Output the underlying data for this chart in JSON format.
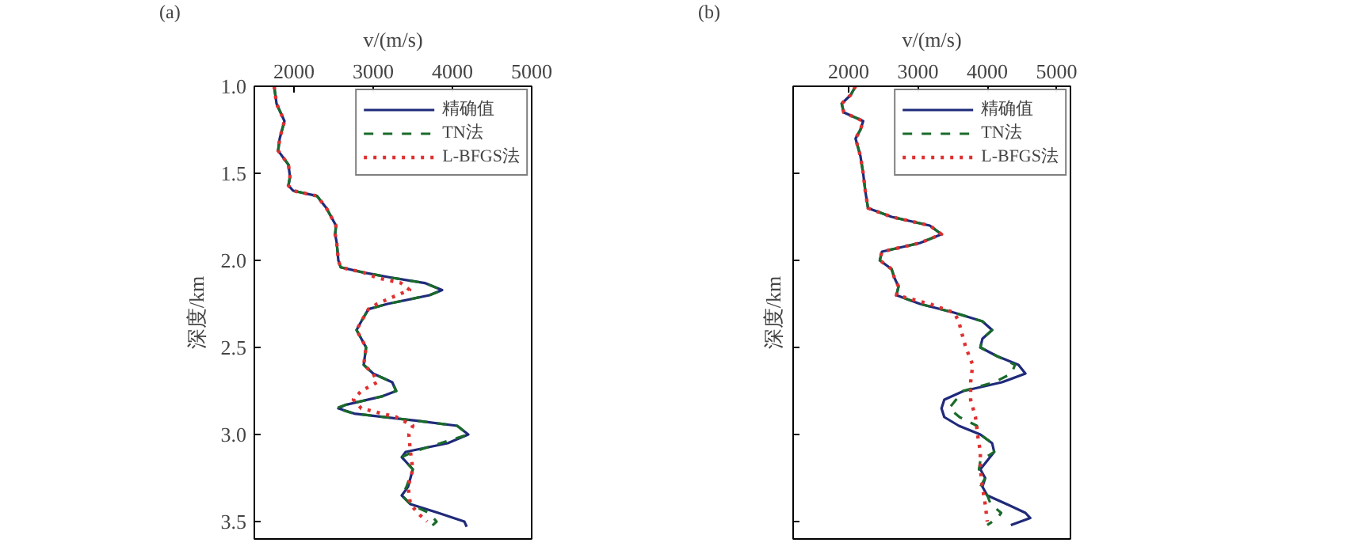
{
  "chart_data": [
    {
      "type": "line",
      "xlabel": "v/(m/s)",
      "ylabel": "深度/km",
      "annotations": [
        "(a)"
      ],
      "xlim": [
        1500,
        5000
      ],
      "xticks": [
        2000,
        3000,
        4000,
        5000
      ],
      "ylim": [
        3.6,
        1.0
      ],
      "yticks": [
        {
          "value": 1,
          "label": "1.0"
        },
        1.5,
        {
          "value": 2,
          "label": "2.0"
        },
        2.5,
        {
          "value": 3,
          "label": "3.0"
        },
        3.5
      ],
      "grid": false,
      "legend": "top right",
      "marker": "none",
      "series": [
        {
          "name": "精确值",
          "color": "#1f2a7a",
          "line_style": "solid",
          "x": [
            1750,
            1780,
            1880,
            1820,
            1800,
            1930,
            1950,
            1930,
            1990,
            2290,
            2410,
            2470,
            2530,
            2520,
            2540,
            2550,
            2560,
            2590,
            2880,
            3240,
            3650,
            3870,
            3710,
            3180,
            2940,
            2850,
            2790,
            2850,
            2910,
            2880,
            3000,
            3240,
            3290,
            3120,
            2650,
            2560,
            2760,
            3530,
            4060,
            4200,
            3940,
            3410,
            3360,
            3500,
            3440,
            3360,
            3470,
            3820,
            4150,
            4180
          ],
          "values": [
            1.0,
            1.1,
            1.2,
            1.3,
            1.37,
            1.45,
            1.52,
            1.57,
            1.6,
            1.63,
            1.7,
            1.75,
            1.8,
            1.85,
            1.9,
            1.95,
            2.0,
            2.04,
            2.07,
            2.1,
            2.13,
            2.17,
            2.2,
            2.25,
            2.28,
            2.35,
            2.4,
            2.45,
            2.5,
            2.6,
            2.65,
            2.7,
            2.75,
            2.78,
            2.83,
            2.85,
            2.88,
            2.92,
            2.95,
            3.0,
            3.05,
            3.1,
            3.13,
            3.2,
            3.3,
            3.35,
            3.4,
            3.45,
            3.5,
            3.53
          ]
        },
        {
          "name": "TN法",
          "color": "#1a6b2a",
          "line_style": "dashed",
          "x": [
            1750,
            1780,
            1880,
            1820,
            1800,
            1930,
            1950,
            1930,
            1990,
            2290,
            2410,
            2470,
            2530,
            2520,
            2540,
            2550,
            2560,
            2590,
            2880,
            3240,
            3650,
            3870,
            3710,
            3180,
            2940,
            2850,
            2790,
            2850,
            2910,
            2880,
            3000,
            3240,
            3290,
            3120,
            2650,
            2530,
            2760,
            3530,
            4060,
            4200,
            3850,
            3500,
            3360,
            3500,
            3420,
            3360,
            3470,
            3700,
            3800,
            3730
          ],
          "values": [
            1.0,
            1.1,
            1.2,
            1.3,
            1.37,
            1.45,
            1.52,
            1.57,
            1.6,
            1.63,
            1.7,
            1.75,
            1.8,
            1.85,
            1.9,
            1.95,
            2.0,
            2.04,
            2.07,
            2.1,
            2.13,
            2.17,
            2.2,
            2.25,
            2.28,
            2.35,
            2.4,
            2.45,
            2.5,
            2.6,
            2.65,
            2.7,
            2.75,
            2.78,
            2.83,
            2.85,
            2.88,
            2.92,
            2.95,
            3.0,
            3.05,
            3.1,
            3.13,
            3.2,
            3.3,
            3.35,
            3.4,
            3.45,
            3.5,
            3.53
          ]
        },
        {
          "name": "L-BFGS法",
          "color": "#e03030",
          "line_style": "dotted",
          "x": [
            1750,
            1780,
            1880,
            1820,
            1800,
            1930,
            1950,
            1930,
            1990,
            2290,
            2410,
            2470,
            2530,
            2520,
            2540,
            2550,
            2560,
            2590,
            2880,
            3050,
            3350,
            3460,
            3300,
            3050,
            2940,
            2850,
            2790,
            2850,
            2910,
            2880,
            3000,
            3050,
            2850,
            2750,
            2850,
            3290,
            3500,
            3450,
            3470,
            3500,
            3440,
            3470,
            3560,
            3680
          ],
          "values": [
            1.0,
            1.1,
            1.2,
            1.3,
            1.37,
            1.45,
            1.52,
            1.57,
            1.6,
            1.63,
            1.7,
            1.75,
            1.8,
            1.85,
            1.9,
            1.95,
            2.0,
            2.04,
            2.07,
            2.1,
            2.13,
            2.17,
            2.2,
            2.25,
            2.28,
            2.35,
            2.4,
            2.45,
            2.5,
            2.6,
            2.65,
            2.7,
            2.75,
            2.8,
            2.85,
            2.9,
            2.95,
            3.0,
            3.1,
            3.2,
            3.3,
            3.4,
            3.45,
            3.5
          ]
        }
      ]
    },
    {
      "type": "line",
      "xlabel": "v/(m/s)",
      "ylabel": "深度/km",
      "annotations": [
        "(b)"
      ],
      "xlim": [
        1200,
        5200
      ],
      "xticks": [
        2000,
        3000,
        4000,
        5000
      ],
      "ylim": [
        3.6,
        1.0
      ],
      "yticks": [
        1,
        1.5,
        2,
        2.5,
        3,
        3.5
      ],
      "tick_labels": "x",
      "grid": false,
      "legend": "top right",
      "marker": "none",
      "series": [
        {
          "name": "精确值",
          "color": "#1f2a7a",
          "line_style": "solid",
          "x": [
            2100,
            2030,
            1900,
            1930,
            2210,
            2170,
            2100,
            2170,
            2210,
            2240,
            2280,
            2620,
            3170,
            3340,
            3030,
            2480,
            2450,
            2620,
            2660,
            2720,
            2690,
            3030,
            3520,
            3930,
            4070,
            3930,
            3900,
            4140,
            4450,
            4550,
            4210,
            3660,
            3380,
            3340,
            3380,
            3590,
            3900,
            4070,
            4100,
            4000,
            3900,
            3970,
            3930,
            4000,
            4280,
            4550,
            4620,
            4340
          ],
          "values": [
            1.0,
            1.05,
            1.1,
            1.15,
            1.2,
            1.25,
            1.3,
            1.4,
            1.5,
            1.6,
            1.7,
            1.75,
            1.8,
            1.85,
            1.9,
            1.95,
            2.0,
            2.05,
            2.1,
            2.15,
            2.2,
            2.25,
            2.3,
            2.35,
            2.4,
            2.45,
            2.5,
            2.55,
            2.6,
            2.65,
            2.7,
            2.75,
            2.8,
            2.85,
            2.9,
            2.95,
            3.0,
            3.05,
            3.1,
            3.15,
            3.2,
            3.25,
            3.3,
            3.35,
            3.4,
            3.45,
            3.48,
            3.52
          ]
        },
        {
          "name": "TN法",
          "color": "#1a6b2a",
          "line_style": "dashed",
          "x": [
            2100,
            2030,
            1900,
            1930,
            2210,
            2170,
            2100,
            2170,
            2210,
            2240,
            2280,
            2620,
            3170,
            3340,
            3030,
            2480,
            2450,
            2620,
            2660,
            2720,
            2690,
            3030,
            3520,
            3930,
            4070,
            3930,
            3900,
            4140,
            4400,
            4350,
            4100,
            3650,
            3550,
            3450,
            3600,
            3850,
            3900,
            4070,
            4100,
            3900,
            3880,
            3970,
            3900,
            4000,
            4050,
            4200,
            4150,
            4000
          ],
          "values": [
            1.0,
            1.05,
            1.1,
            1.15,
            1.2,
            1.25,
            1.3,
            1.4,
            1.5,
            1.6,
            1.7,
            1.75,
            1.8,
            1.85,
            1.9,
            1.95,
            2.0,
            2.05,
            2.1,
            2.15,
            2.2,
            2.25,
            2.3,
            2.35,
            2.4,
            2.45,
            2.5,
            2.55,
            2.6,
            2.65,
            2.7,
            2.75,
            2.8,
            2.85,
            2.9,
            2.95,
            3.0,
            3.05,
            3.1,
            3.15,
            3.2,
            3.25,
            3.3,
            3.35,
            3.4,
            3.45,
            3.48,
            3.52
          ]
        },
        {
          "name": "L-BFGS法",
          "color": "#e03030",
          "line_style": "dotted",
          "x": [
            2100,
            2030,
            1900,
            1930,
            2210,
            2170,
            2100,
            2170,
            2210,
            2240,
            2280,
            2620,
            3170,
            3340,
            3030,
            2480,
            2450,
            2620,
            2660,
            2720,
            2690,
            3170,
            3520,
            3590,
            3620,
            3690,
            3790,
            3760,
            3760,
            3830,
            3860,
            3900,
            3900,
            3930,
            3970,
            4000
          ],
          "values": [
            1.0,
            1.05,
            1.1,
            1.15,
            1.2,
            1.25,
            1.3,
            1.4,
            1.5,
            1.6,
            1.7,
            1.75,
            1.8,
            1.85,
            1.9,
            1.95,
            2.0,
            2.05,
            2.1,
            2.15,
            2.2,
            2.25,
            2.3,
            2.35,
            2.4,
            2.5,
            2.6,
            2.7,
            2.8,
            2.9,
            3.0,
            3.1,
            3.2,
            3.3,
            3.4,
            3.5
          ]
        }
      ]
    }
  ]
}
